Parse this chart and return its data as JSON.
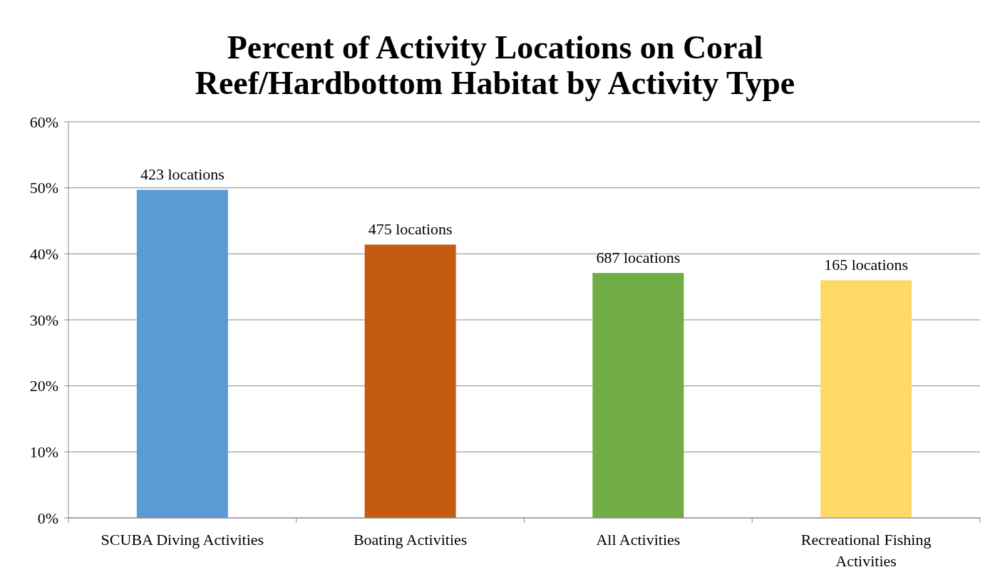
{
  "chart_data": {
    "type": "bar",
    "title": "Percent of Activity Locations on Coral Reef/Hardbottom Habitat by Activity Type",
    "categories": [
      "SCUBA Diving Activities",
      "Boating Activities",
      "All Activities",
      "Recreational Fishing Activities"
    ],
    "values": [
      49.7,
      41.4,
      37.1,
      36.0
    ],
    "colors": [
      "#5b9bd5",
      "#c55a11",
      "#70ad47",
      "#ffd966"
    ],
    "annotations": [
      {
        "text": "423 locations",
        "x": "SCUBA Diving Activities",
        "y": 49.7
      },
      {
        "text": "475 locations",
        "x": "Boating Activities",
        "y": 41.4
      },
      {
        "text": "687 locations",
        "x": "All Activities",
        "y": 37.1
      },
      {
        "text": "165 locations",
        "x": "Recreational Fishing Activities",
        "y": 36.0
      }
    ],
    "ylim": [
      0,
      60
    ],
    "yticks": [
      {
        "value": 0,
        "label": "0%"
      },
      {
        "value": 10,
        "label": "10%"
      },
      {
        "value": 20,
        "label": "20%"
      },
      {
        "value": 30,
        "label": "30%"
      },
      {
        "value": 40,
        "label": "40%"
      },
      {
        "value": 50,
        "label": "50%"
      },
      {
        "value": 60,
        "label": "60%"
      }
    ],
    "grid": "y"
  }
}
